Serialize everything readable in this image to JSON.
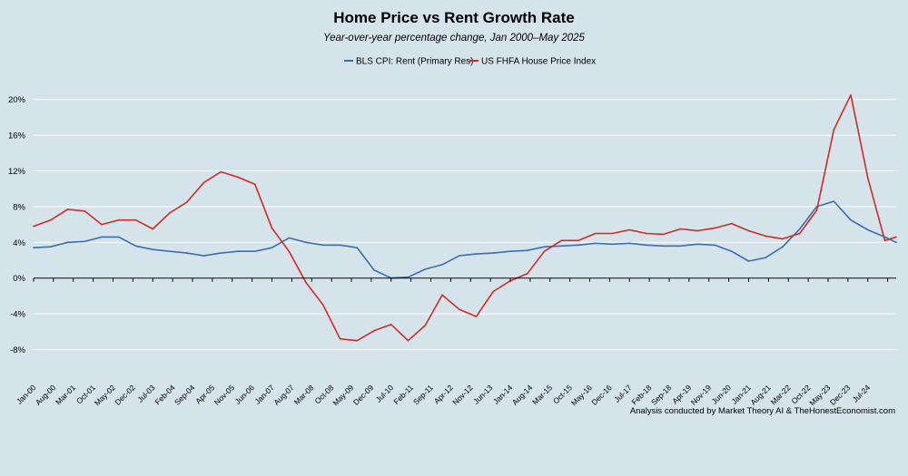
{
  "chart_data": {
    "type": "line",
    "title": "Home Price vs Rent Growth Rate",
    "subtitle": "Year-over-year percentage change, Jan 2000–May 2025",
    "xlabel": "",
    "ylabel": "",
    "ylim": [
      -11.5,
      22
    ],
    "yticks": [
      -8,
      -4,
      0,
      4,
      8,
      12,
      16,
      20
    ],
    "ytick_labels": [
      "-8%",
      "-4%",
      "0%",
      "4%",
      "8%",
      "12%",
      "16%",
      "20%"
    ],
    "x_range": [
      "Jan-00",
      "May-25"
    ],
    "x_tick_labels": [
      "Jan-00",
      "Aug-00",
      "Mar-01",
      "Oct-01",
      "May-02",
      "Dec-02",
      "Jul-03",
      "Feb-04",
      "Sep-04",
      "Apr-05",
      "Nov-05",
      "Jun-06",
      "Jan-07",
      "Aug-07",
      "Mar-08",
      "Oct-08",
      "May-09",
      "Dec-09",
      "Jul-10",
      "Feb-11",
      "Sep-11",
      "Apr-12",
      "Nov-12",
      "Jun-13",
      "Jan-14",
      "Aug-14",
      "Mar-15",
      "Oct-15",
      "May-16",
      "Dec-16",
      "Jul-17",
      "Feb-18",
      "Sep-18",
      "Apr-19",
      "Nov-19",
      "Jun-20",
      "Jan-21",
      "Aug-21",
      "Mar-22",
      "Oct-22",
      "May-23",
      "Dec-23",
      "Jul-24"
    ],
    "legend_position": "top-center",
    "grid": true,
    "series": [
      {
        "name": "BLS CPI: Rent (Primary Res)",
        "color": "#3a6fb5",
        "points": [
          [
            "Jan-00",
            3.4
          ],
          [
            "Jul-00",
            3.5
          ],
          [
            "Jan-01",
            4.0
          ],
          [
            "Jul-01",
            4.1
          ],
          [
            "Jan-02",
            4.6
          ],
          [
            "Jul-02",
            4.6
          ],
          [
            "Jan-03",
            3.6
          ],
          [
            "Jul-03",
            3.2
          ],
          [
            "Jan-04",
            3.0
          ],
          [
            "Jul-04",
            2.8
          ],
          [
            "Jan-05",
            2.5
          ],
          [
            "Jul-05",
            2.8
          ],
          [
            "Jan-06",
            3.0
          ],
          [
            "Jul-06",
            3.0
          ],
          [
            "Jan-07",
            3.4
          ],
          [
            "Jul-07",
            4.5
          ],
          [
            "Jan-08",
            4.0
          ],
          [
            "Jul-08",
            3.7
          ],
          [
            "Jan-09",
            3.7
          ],
          [
            "Jul-09",
            3.4
          ],
          [
            "Jan-10",
            0.9
          ],
          [
            "Jul-10",
            0.0
          ],
          [
            "Jan-11",
            0.1
          ],
          [
            "Jul-11",
            1.0
          ],
          [
            "Jan-12",
            1.5
          ],
          [
            "Jul-12",
            2.5
          ],
          [
            "Jan-13",
            2.7
          ],
          [
            "Jul-13",
            2.8
          ],
          [
            "Jan-14",
            3.0
          ],
          [
            "Jul-14",
            3.1
          ],
          [
            "Jan-15",
            3.5
          ],
          [
            "Jul-15",
            3.6
          ],
          [
            "Jan-16",
            3.7
          ],
          [
            "Jul-16",
            3.9
          ],
          [
            "Jan-17",
            3.8
          ],
          [
            "Jul-17",
            3.9
          ],
          [
            "Jan-18",
            3.7
          ],
          [
            "Jul-18",
            3.6
          ],
          [
            "Jan-19",
            3.6
          ],
          [
            "Jul-19",
            3.8
          ],
          [
            "Jan-20",
            3.7
          ],
          [
            "Jul-20",
            3.0
          ],
          [
            "Jan-21",
            1.9
          ],
          [
            "Jul-21",
            2.3
          ],
          [
            "Jan-22",
            3.5
          ],
          [
            "Jul-22",
            5.5
          ],
          [
            "Jan-23",
            8.0
          ],
          [
            "Jul-23",
            8.6
          ],
          [
            "Jan-24",
            6.5
          ],
          [
            "Jul-24",
            5.4
          ],
          [
            "Jan-25",
            4.6
          ],
          [
            "May-25",
            4.0
          ]
        ]
      },
      {
        "name": "US FHFA House Price Index",
        "color": "#d22a26",
        "points": [
          [
            "Jan-00",
            5.8
          ],
          [
            "Jul-00",
            6.5
          ],
          [
            "Jan-01",
            7.7
          ],
          [
            "Jul-01",
            7.5
          ],
          [
            "Jan-02",
            6.0
          ],
          [
            "Jul-02",
            6.5
          ],
          [
            "Jan-03",
            6.5
          ],
          [
            "Jul-03",
            5.5
          ],
          [
            "Jan-04",
            7.3
          ],
          [
            "Jul-04",
            8.5
          ],
          [
            "Jan-05",
            10.7
          ],
          [
            "Jul-05",
            11.9
          ],
          [
            "Jan-06",
            11.3
          ],
          [
            "Jul-06",
            10.5
          ],
          [
            "Jan-07",
            5.6
          ],
          [
            "Jul-07",
            3.0
          ],
          [
            "Jan-08",
            -0.5
          ],
          [
            "Jul-08",
            -3.0
          ],
          [
            "Jan-09",
            -6.8
          ],
          [
            "Jul-09",
            -7.0
          ],
          [
            "Jan-10",
            -5.9
          ],
          [
            "Jul-10",
            -5.2
          ],
          [
            "Jan-11",
            -7.0
          ],
          [
            "Jul-11",
            -5.3
          ],
          [
            "Jan-12",
            -1.9
          ],
          [
            "Jul-12",
            -3.5
          ],
          [
            "Jan-13",
            -4.3
          ],
          [
            "Jul-13",
            -1.5
          ],
          [
            "Jan-14",
            -0.3
          ],
          [
            "Jul-14",
            0.5
          ],
          [
            "Jan-15",
            3.0
          ],
          [
            "Jul-15",
            4.2
          ],
          [
            "Jan-16",
            4.2
          ],
          [
            "Jul-16",
            5.0
          ],
          [
            "Jan-17",
            5.0
          ],
          [
            "Jul-17",
            5.4
          ],
          [
            "Jan-18",
            5.0
          ],
          [
            "Jul-18",
            4.9
          ],
          [
            "Jan-19",
            5.5
          ],
          [
            "Jul-19",
            5.3
          ],
          [
            "Jan-20",
            5.6
          ],
          [
            "Jul-20",
            6.1
          ],
          [
            "Jan-21",
            5.3
          ],
          [
            "Jul-21",
            4.7
          ],
          [
            "Jan-22",
            4.4
          ],
          [
            "Jul-22",
            5.0
          ],
          [
            "Jan-23",
            7.6
          ],
          [
            "Jul-23",
            16.6
          ],
          [
            "Jan-24",
            20.5
          ],
          [
            "Jul-24",
            11.2
          ],
          [
            "Jan-25",
            4.2
          ],
          [
            "May-25",
            4.6
          ]
        ]
      }
    ],
    "annotation": "Analysis conducted by Market Theory AI & TheHonestEconomist.com"
  }
}
